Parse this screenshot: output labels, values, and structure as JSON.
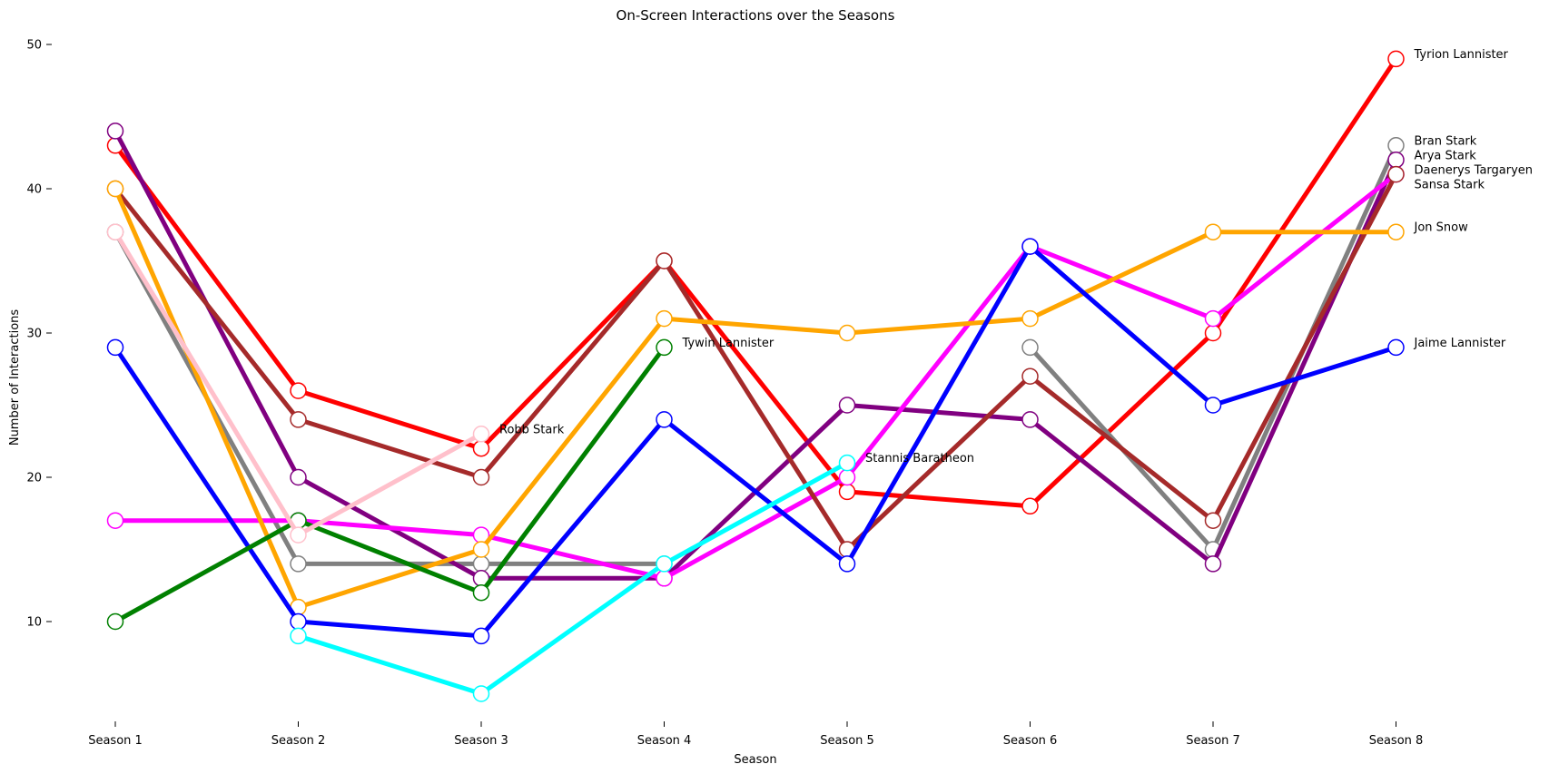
{
  "chart_data": {
    "type": "line",
    "title": "On-Screen Interactions over the Seasons",
    "xlabel": "Season",
    "ylabel": "Number of Interactions",
    "categories": [
      "Season 1",
      "Season 2",
      "Season 3",
      "Season 4",
      "Season 5",
      "Season 6",
      "Season 7",
      "Season 8"
    ],
    "ylim": [
      3,
      51
    ],
    "yticks": [
      10,
      20,
      30,
      40,
      50
    ],
    "grid": false,
    "legend": "none (series labeled at line ends)",
    "series": [
      {
        "name": "Tyrion Lannister",
        "color": "#ff0000",
        "values": [
          43,
          26,
          22,
          35,
          19,
          18,
          30,
          49
        ],
        "label_at": 7
      },
      {
        "name": "Bran Stark",
        "color": "#808080",
        "values": [
          37,
          14,
          14,
          14,
          null,
          29,
          15,
          43
        ],
        "label_at": 7
      },
      {
        "name": "Arya Stark",
        "color": "#800080",
        "values": [
          44,
          20,
          13,
          13,
          25,
          24,
          14,
          42
        ],
        "label_at": 7
      },
      {
        "name": "Daenerys Targaryen",
        "color": "#ff00ff",
        "values": [
          17,
          17,
          16,
          13,
          20,
          36,
          31,
          41
        ],
        "label_at": 7
      },
      {
        "name": "Sansa Stark",
        "color": "#a52a2a",
        "values": [
          40,
          24,
          20,
          35,
          15,
          27,
          17,
          41
        ],
        "label_at": 7
      },
      {
        "name": "Jon Snow",
        "color": "#ffa500",
        "values": [
          40,
          11,
          15,
          31,
          30,
          31,
          37,
          37
        ],
        "label_at": 7
      },
      {
        "name": "Jaime Lannister",
        "color": "#0000ff",
        "values": [
          29,
          10,
          9,
          24,
          14,
          36,
          25,
          29
        ],
        "label_at": 7
      },
      {
        "name": "Tywin Lannister",
        "color": "#008000",
        "values": [
          10,
          17,
          12,
          29,
          null,
          null,
          null,
          null
        ],
        "label_at": 3
      },
      {
        "name": "Robb Stark",
        "color": "#ffc0cb",
        "values": [
          37,
          16,
          23,
          null,
          null,
          null,
          null,
          null
        ],
        "label_at": 2
      },
      {
        "name": "Stannis Baratheon",
        "color": "#00ffff",
        "values": [
          null,
          9,
          5,
          14,
          21,
          null,
          null,
          null
        ],
        "label_at": 4
      }
    ]
  }
}
